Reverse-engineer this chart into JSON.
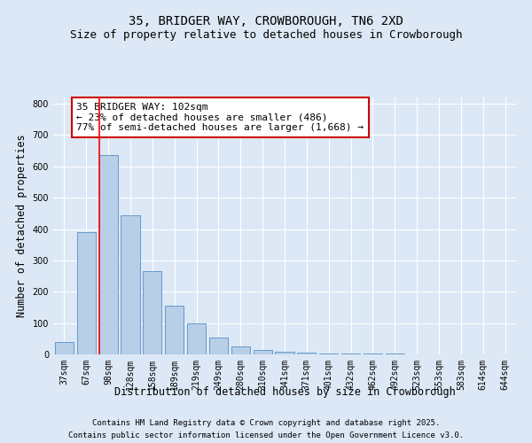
{
  "title": "35, BRIDGER WAY, CROWBOROUGH, TN6 2XD",
  "subtitle": "Size of property relative to detached houses in Crowborough",
  "xlabel": "Distribution of detached houses by size in Crowborough",
  "ylabel": "Number of detached properties",
  "bin_labels": [
    "37sqm",
    "67sqm",
    "98sqm",
    "128sqm",
    "158sqm",
    "189sqm",
    "219sqm",
    "249sqm",
    "280sqm",
    "310sqm",
    "341sqm",
    "371sqm",
    "401sqm",
    "432sqm",
    "462sqm",
    "492sqm",
    "523sqm",
    "553sqm",
    "583sqm",
    "614sqm",
    "644sqm"
  ],
  "bar_values": [
    40,
    390,
    635,
    445,
    265,
    155,
    100,
    55,
    25,
    15,
    8,
    5,
    4,
    3,
    2,
    2,
    1,
    1,
    1,
    1,
    0
  ],
  "bar_color": "#b8cfe8",
  "bar_edge_color": "#6699cc",
  "red_line_bin_index": 2,
  "ylim": [
    0,
    820
  ],
  "yticks": [
    0,
    100,
    200,
    300,
    400,
    500,
    600,
    700,
    800
  ],
  "annotation_text": "35 BRIDGER WAY: 102sqm\n← 23% of detached houses are smaller (486)\n77% of semi-detached houses are larger (1,668) →",
  "annotation_box_color": "#ffffff",
  "annotation_box_edge": "#cc0000",
  "footnote1": "Contains HM Land Registry data © Crown copyright and database right 2025.",
  "footnote2": "Contains public sector information licensed under the Open Government Licence v3.0.",
  "background_color": "#dce8f5",
  "plot_bg_color": "#dce8f5",
  "title_fontsize": 10,
  "subtitle_fontsize": 9,
  "axis_label_fontsize": 8.5,
  "tick_fontsize": 7,
  "annotation_fontsize": 8,
  "footnote_fontsize": 6.5
}
